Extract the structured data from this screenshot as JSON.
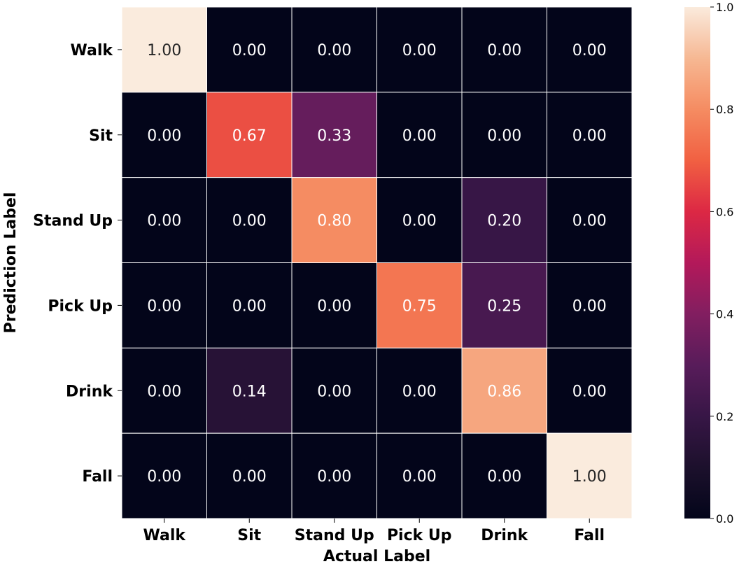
{
  "chart_data": {
    "type": "heatmap",
    "title": "",
    "xlabel": "Actual Label",
    "ylabel": "Prediction Label",
    "x_categories": [
      "Walk",
      "Sit",
      "Stand Up",
      "Pick Up",
      "Drink",
      "Fall"
    ],
    "y_categories": [
      "Walk",
      "Sit",
      "Stand Up",
      "Pick Up",
      "Drink",
      "Fall"
    ],
    "values": [
      [
        1.0,
        0.0,
        0.0,
        0.0,
        0.0,
        0.0
      ],
      [
        0.0,
        0.67,
        0.33,
        0.0,
        0.0,
        0.0
      ],
      [
        0.0,
        0.0,
        0.8,
        0.0,
        0.2,
        0.0
      ],
      [
        0.0,
        0.0,
        0.0,
        0.75,
        0.25,
        0.0
      ],
      [
        0.0,
        0.14,
        0.0,
        0.0,
        0.86,
        0.0
      ],
      [
        0.0,
        0.0,
        0.0,
        0.0,
        0.0,
        1.0
      ]
    ],
    "value_format": "2 decimals",
    "colormap": "rocket",
    "colorbar": {
      "range": [
        0.0,
        1.0
      ],
      "ticks": [
        "0.0",
        "0.2",
        "0.4",
        "0.6",
        "0.8",
        "1.0"
      ]
    },
    "grid_lines": "white"
  }
}
